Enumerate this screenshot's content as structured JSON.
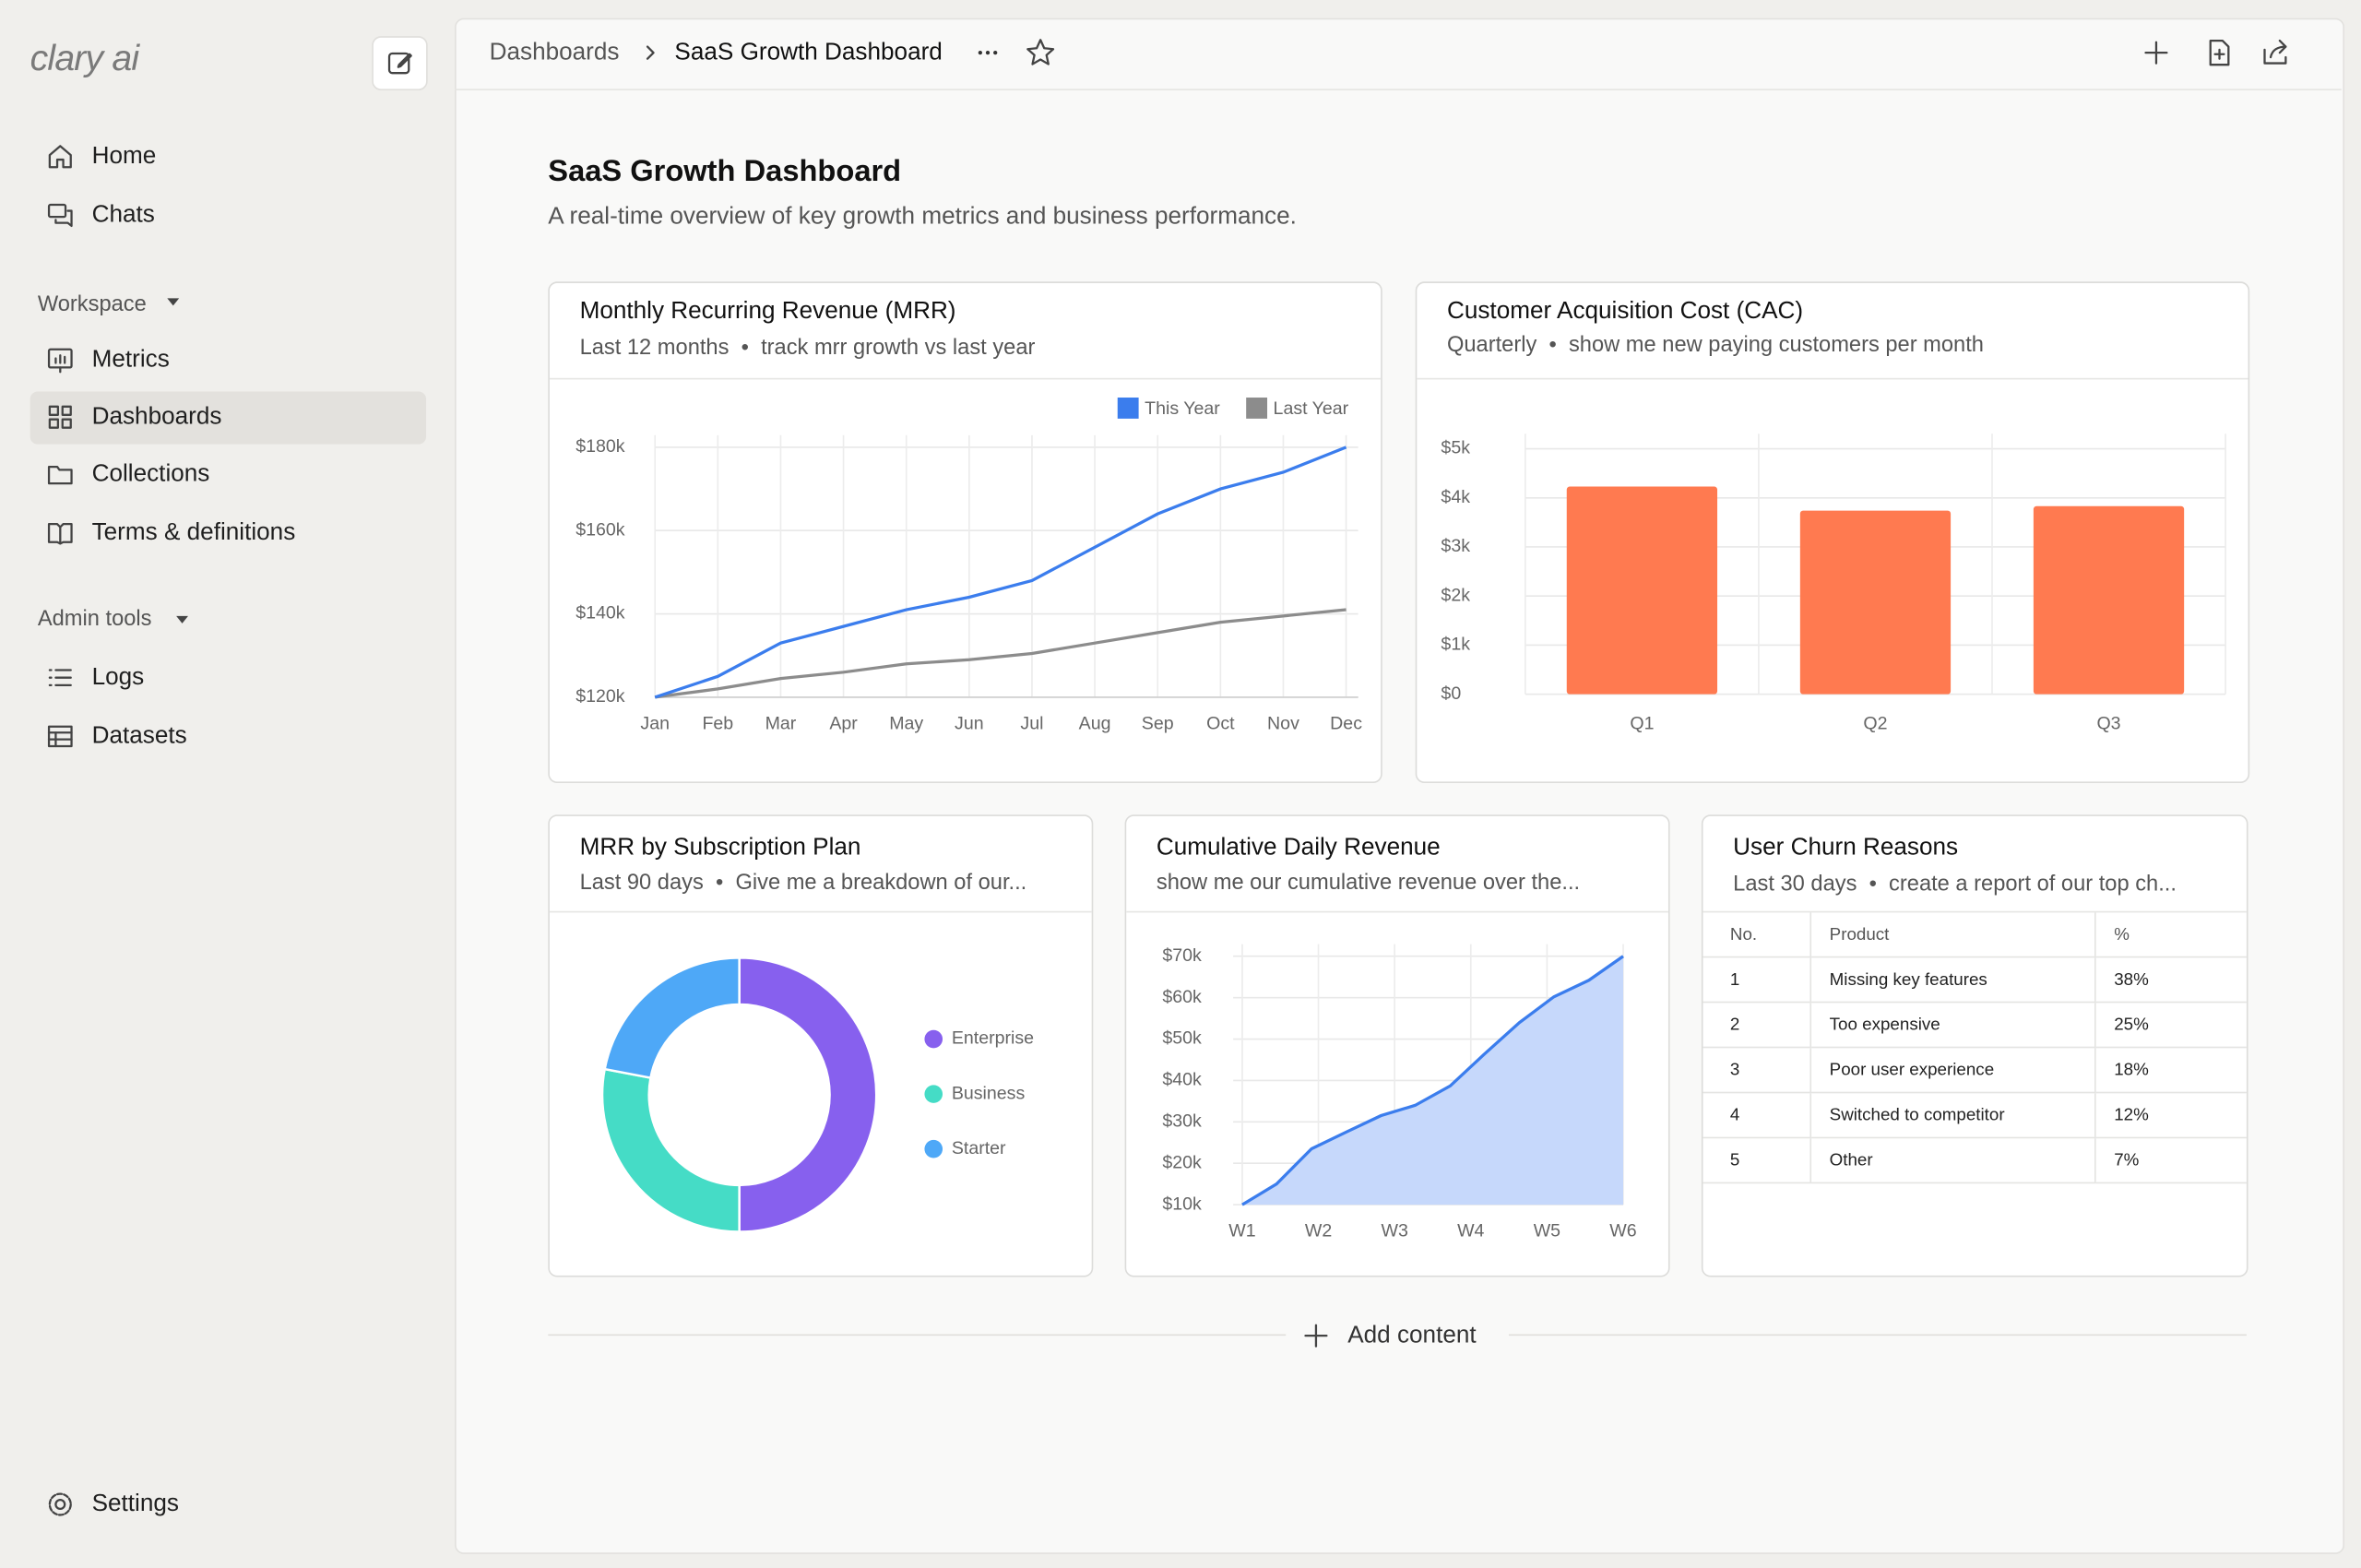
{
  "sidebar": {
    "logo": "clary ai",
    "nav": [
      "Home",
      "Chats"
    ],
    "workspace_label": "Workspace",
    "workspace": [
      "Metrics",
      "Dashboards",
      "Collections",
      "Terms & definitions"
    ],
    "admin_label": "Admin tools",
    "admin": [
      "Logs",
      "Datasets"
    ],
    "settings": "Settings"
  },
  "breadcrumb": {
    "parent": "Dashboards",
    "current": "SaaS Growth Dashboard"
  },
  "dashboard": {
    "title": "SaaS Growth Dashboard",
    "subtitle": "A real-time overview of key growth metrics and business performance."
  },
  "chart_data": [
    {
      "type": "line",
      "title": "Monthly Recurring Revenue (MRR)",
      "period": "Last 12 months",
      "description": "track mrr growth vs last year",
      "categories": [
        "Jan",
        "Feb",
        "Mar",
        "Apr",
        "May",
        "Jun",
        "Jul",
        "Aug",
        "Sep",
        "Oct",
        "Nov",
        "Dec"
      ],
      "series": [
        {
          "name": "This Year",
          "color": "#3b7ded",
          "values": [
            120000,
            125000,
            133000,
            137000,
            141000,
            144000,
            148000,
            156000,
            164000,
            170000,
            174000,
            180000
          ]
        },
        {
          "name": "Last Year",
          "color": "#8c8c8c",
          "values": [
            120000,
            122000,
            124500,
            126000,
            128000,
            129000,
            130500,
            133000,
            135500,
            138000,
            139500,
            141000
          ]
        }
      ],
      "ylim": [
        120000,
        180000
      ],
      "yticks": [
        {
          "value": 120000,
          "label": "$120k"
        },
        {
          "value": 140000,
          "label": "$140k"
        },
        {
          "value": 160000,
          "label": "$160k"
        },
        {
          "value": 180000,
          "label": "$180k"
        }
      ],
      "grid": true,
      "legend": "top-right"
    },
    {
      "type": "bar",
      "title": "Customer Acquisition Cost (CAC)",
      "period": "Quarterly",
      "description": "show me new paying customers per month",
      "categories": [
        "Q1",
        "Q2",
        "Q3"
      ],
      "values": [
        4230,
        3740,
        3830
      ],
      "color": "#ff7a50",
      "ylim": [
        0,
        5000
      ],
      "yticks": [
        {
          "value": 0,
          "label": "$0"
        },
        {
          "value": 1000,
          "label": "$1k"
        },
        {
          "value": 2000,
          "label": "$2k"
        },
        {
          "value": 3000,
          "label": "$3k"
        },
        {
          "value": 4000,
          "label": "$4k"
        },
        {
          "value": 5000,
          "label": "$5k"
        }
      ],
      "grid": true
    },
    {
      "type": "pie",
      "title": "MRR by Subscription Plan",
      "period": "Last 90 days",
      "description": "Give me a breakdown of our...",
      "categories": [
        "Enterprise",
        "Business",
        "Starter"
      ],
      "values": [
        50,
        28,
        22
      ],
      "colors": [
        "#8760ee",
        "#45dcc6",
        "#4ea8f7"
      ],
      "donut": true,
      "legend": "right"
    },
    {
      "type": "area",
      "title": "Cumulative Daily Revenue",
      "description": "show me our cumulative revenue over the...",
      "x": [
        1,
        1.45,
        1.91,
        2.36,
        2.82,
        3.27,
        3.73,
        4.18,
        4.64,
        5.09,
        5.55,
        6
      ],
      "values": [
        10000,
        15000,
        23500,
        27500,
        31500,
        34000,
        38700,
        46400,
        54000,
        60200,
        64200,
        70000
      ],
      "color": "#3b7ded",
      "fill": "#c6d8fb",
      "xlim": [
        1,
        6
      ],
      "xticks": [
        {
          "value": 1,
          "label": "W1"
        },
        {
          "value": 2,
          "label": "W2"
        },
        {
          "value": 3,
          "label": "W3"
        },
        {
          "value": 4,
          "label": "W4"
        },
        {
          "value": 5,
          "label": "W5"
        },
        {
          "value": 6,
          "label": "W6"
        }
      ],
      "ylim": [
        10000,
        70000
      ],
      "yticks": [
        {
          "value": 10000,
          "label": "$10k"
        },
        {
          "value": 20000,
          "label": "$20k"
        },
        {
          "value": 30000,
          "label": "$30k"
        },
        {
          "value": 40000,
          "label": "$40k"
        },
        {
          "value": 50000,
          "label": "$50k"
        },
        {
          "value": 60000,
          "label": "$60k"
        },
        {
          "value": 70000,
          "label": "$70k"
        }
      ],
      "grid": true
    }
  ],
  "table": {
    "title": "User Churn Reasons",
    "period": "Last 30 days",
    "description": "create a report of our top ch...",
    "headers": [
      "No.",
      "Product",
      "%"
    ],
    "rows": [
      [
        "1",
        "Missing key features",
        "38%"
      ],
      [
        "2",
        "Too expensive",
        "25%"
      ],
      [
        "3",
        "Poor user experience",
        "18%"
      ],
      [
        "4",
        "Switched to competitor",
        "12%"
      ],
      [
        "5",
        "Other",
        "7%"
      ]
    ]
  },
  "add_content": "Add content"
}
